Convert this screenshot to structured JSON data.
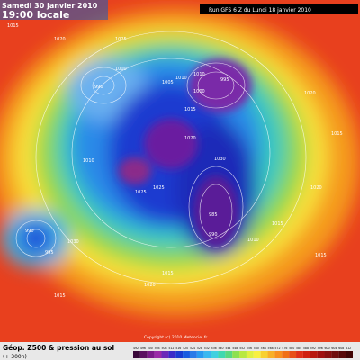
{
  "header": {
    "valid_date": "Samedi 30 janvier 2010",
    "valid_time": "19:00 locale",
    "run": "Run GFS 6 Z du Lundi 18 janvier 2010"
  },
  "footer": {
    "title": "Géop. Z500 & pression au sol",
    "lead": "(+ 300h)",
    "copyright": "Copyright (c) 2010 Meteociel.fr"
  },
  "scale": {
    "labels": [
      "492",
      "496",
      "500",
      "504",
      "508",
      "512",
      "516",
      "520",
      "524",
      "528",
      "532",
      "536",
      "540",
      "544",
      "548",
      "552",
      "556",
      "560",
      "564",
      "568",
      "572",
      "576",
      "580",
      "584",
      "588",
      "592",
      "596",
      "600",
      "604",
      "608",
      "612"
    ]
  },
  "isobar_labels": [
    "1015",
    "1020",
    "1025",
    "1010",
    "1000",
    "990",
    "1005",
    "1000",
    "995",
    "1010",
    "1015",
    "1020",
    "1020",
    "1015",
    "1025",
    "1015",
    "985",
    "990",
    "1010",
    "1015",
    "1030",
    "1025",
    "990",
    "995",
    "1020",
    "1015",
    "1015",
    "1020",
    "1010",
    "1030"
  ]
}
